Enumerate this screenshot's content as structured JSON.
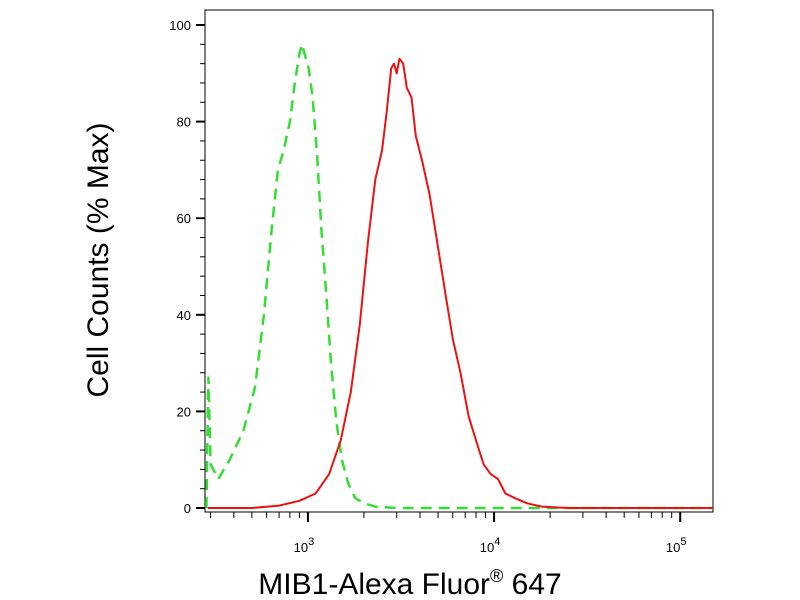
{
  "chart_data": {
    "type": "line",
    "xlabel": "MIB1-Alexa Fluor",
    "xlabel_superscript": "®",
    "xlabel_suffix": " 647",
    "ylabel": "Cell Counts (% Max)",
    "xscale": "log",
    "xlim": [
      280,
      150000
    ],
    "ylim": [
      0,
      100
    ],
    "x_ticks": [
      {
        "value": 1000,
        "base": "10",
        "exp": "3"
      },
      {
        "value": 10000,
        "base": "10",
        "exp": "4"
      },
      {
        "value": 100000,
        "base": "10",
        "exp": "5"
      }
    ],
    "y_ticks": [
      {
        "value": 0,
        "label": "0"
      },
      {
        "value": 20,
        "label": "20"
      },
      {
        "value": 40,
        "label": "40"
      },
      {
        "value": 60,
        "label": "60"
      },
      {
        "value": 80,
        "label": "80"
      },
      {
        "value": 100,
        "label": "100"
      }
    ],
    "grid": false,
    "legend": "none",
    "series": [
      {
        "style": "dashed",
        "color": "#33dd33",
        "points": [
          [
            285,
            0
          ],
          [
            292,
            27
          ],
          [
            300,
            9
          ],
          [
            330,
            6
          ],
          [
            380,
            10
          ],
          [
            450,
            16
          ],
          [
            520,
            25
          ],
          [
            580,
            40
          ],
          [
            640,
            58
          ],
          [
            690,
            70
          ],
          [
            740,
            74
          ],
          [
            800,
            80
          ],
          [
            850,
            88
          ],
          [
            900,
            94
          ],
          [
            930,
            96
          ],
          [
            960,
            94
          ],
          [
            1010,
            91
          ],
          [
            1060,
            85
          ],
          [
            1120,
            73
          ],
          [
            1180,
            58
          ],
          [
            1250,
            45
          ],
          [
            1330,
            30
          ],
          [
            1420,
            18
          ],
          [
            1520,
            10
          ],
          [
            1650,
            5
          ],
          [
            1800,
            2
          ],
          [
            2000,
            1
          ],
          [
            2300,
            0.3
          ],
          [
            3000,
            0
          ],
          [
            6000,
            0
          ],
          [
            20000,
            0
          ],
          [
            150000,
            0
          ]
        ]
      },
      {
        "style": "solid",
        "color": "#ee1111",
        "points": [
          [
            290,
            0
          ],
          [
            500,
            0
          ],
          [
            700,
            0.5
          ],
          [
            900,
            1.5
          ],
          [
            1100,
            3
          ],
          [
            1300,
            7
          ],
          [
            1500,
            14
          ],
          [
            1700,
            24
          ],
          [
            1900,
            38
          ],
          [
            2100,
            55
          ],
          [
            2300,
            68
          ],
          [
            2500,
            74
          ],
          [
            2650,
            82
          ],
          [
            2800,
            91
          ],
          [
            2900,
            92
          ],
          [
            3000,
            90
          ],
          [
            3100,
            93
          ],
          [
            3250,
            92
          ],
          [
            3400,
            87
          ],
          [
            3600,
            85
          ],
          [
            3800,
            77
          ],
          [
            4100,
            72
          ],
          [
            4500,
            65
          ],
          [
            5000,
            54
          ],
          [
            5500,
            44
          ],
          [
            6000,
            35
          ],
          [
            6600,
            28
          ],
          [
            7300,
            19
          ],
          [
            8000,
            14
          ],
          [
            8800,
            9
          ],
          [
            9600,
            7
          ],
          [
            10500,
            6
          ],
          [
            11500,
            3
          ],
          [
            13000,
            2
          ],
          [
            15000,
            1
          ],
          [
            18000,
            0.3
          ],
          [
            25000,
            0
          ],
          [
            150000,
            0
          ]
        ]
      }
    ]
  }
}
